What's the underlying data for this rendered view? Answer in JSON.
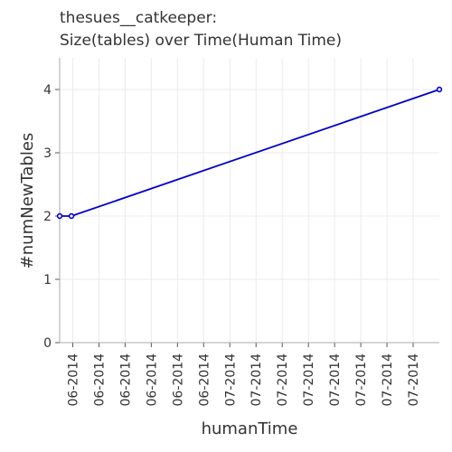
{
  "chart_data": {
    "type": "line",
    "title": "thesues__catkeeper:",
    "subtitle": "Size(tables) over Time(Human Time)",
    "xlabel": "humanTime",
    "ylabel": "#numNewTables",
    "x_tick_labels": [
      "06-2014",
      "06-2014",
      "06-2014",
      "06-2014",
      "06-2014",
      "06-2014",
      "07-2014",
      "07-2014",
      "07-2014",
      "07-2014",
      "07-2014",
      "07-2014",
      "07-2014",
      "07-2014"
    ],
    "y_ticks": [
      0,
      1,
      2,
      3,
      4
    ],
    "ylim": [
      0,
      4.5
    ],
    "x_index_range": [
      0,
      14.5
    ],
    "grid": true,
    "series": [
      {
        "color": "#0000cc",
        "points": [
          {
            "x": 0.0,
            "y": 2
          },
          {
            "x": 0.45,
            "y": 2
          },
          {
            "x": 14.5,
            "y": 4
          }
        ]
      }
    ]
  }
}
